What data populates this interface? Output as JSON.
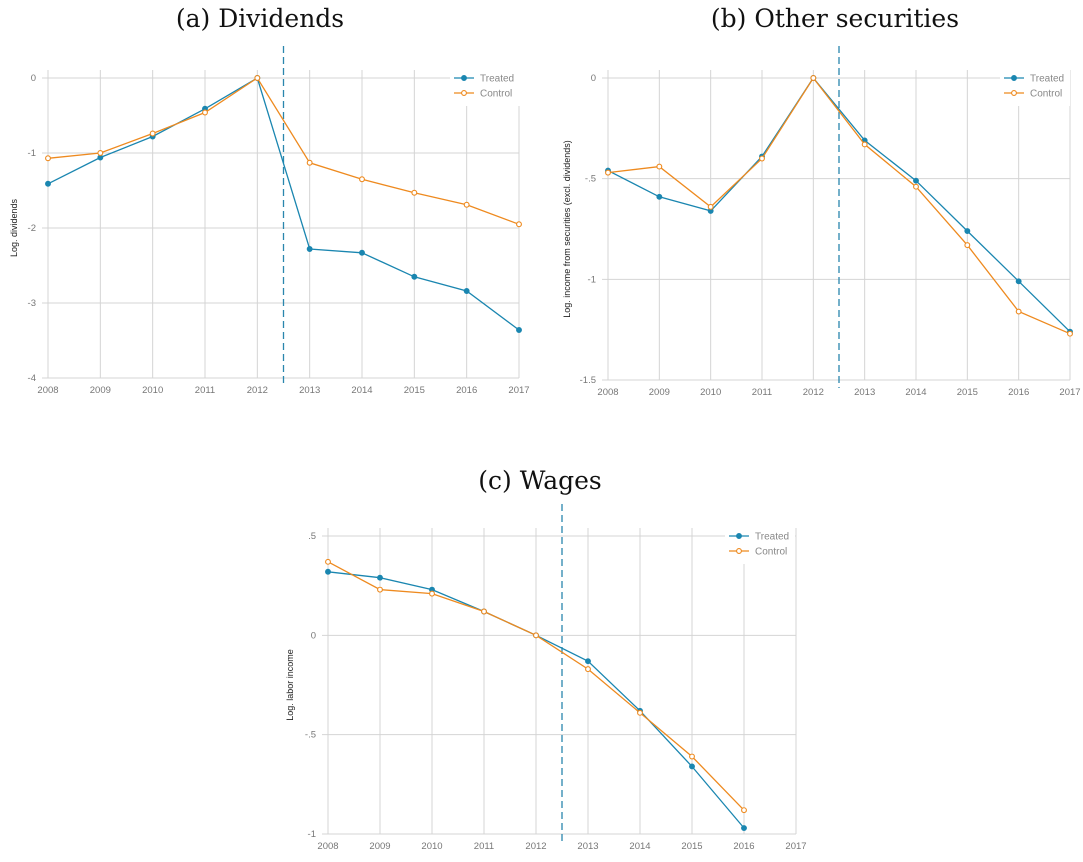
{
  "chart_data": [
    {
      "type": "line",
      "title": "(a) Dividends",
      "ylabel": "Log. dividends",
      "x": [
        2008,
        2009,
        2010,
        2011,
        2012,
        2013,
        2014,
        2015,
        2016,
        2017
      ],
      "ylim": [
        -4,
        0
      ],
      "yticks": [
        0,
        -1,
        -2,
        -3,
        -4
      ],
      "ytick_labels": [
        "0",
        "-1",
        "-2",
        "-3",
        "-4"
      ],
      "treatment_line_x": 2012.5,
      "legend_position": "top-right",
      "series": [
        {
          "name": "Treated",
          "color": "#1a86b0",
          "marker": "filled",
          "values": [
            -1.41,
            -1.06,
            -0.78,
            -0.41,
            0.0,
            -2.28,
            -2.33,
            -2.65,
            -2.84,
            -3.36
          ]
        },
        {
          "name": "Control",
          "color": "#ee8a1f",
          "marker": "hollow",
          "values": [
            -1.07,
            -1.0,
            -0.74,
            -0.46,
            0.0,
            -1.13,
            -1.35,
            -1.53,
            -1.69,
            -1.95
          ]
        }
      ]
    },
    {
      "type": "line",
      "title": "(b) Other securities",
      "ylabel": "Log. income from securities (excl. dividends)",
      "x": [
        2008,
        2009,
        2010,
        2011,
        2012,
        2013,
        2014,
        2015,
        2016,
        2017
      ],
      "ylim": [
        -1.5,
        0
      ],
      "yticks": [
        0,
        -0.5,
        -1,
        -1.5
      ],
      "ytick_labels": [
        "0",
        "-.5",
        "-1",
        "-1.5"
      ],
      "treatment_line_x": 2012.5,
      "legend_position": "top-right",
      "series": [
        {
          "name": "Treated",
          "color": "#1a86b0",
          "marker": "filled",
          "values": [
            -0.46,
            -0.59,
            -0.66,
            -0.39,
            0.0,
            -0.31,
            -0.51,
            -0.76,
            -1.01,
            -1.26
          ]
        },
        {
          "name": "Control",
          "color": "#ee8a1f",
          "marker": "hollow",
          "values": [
            -0.47,
            -0.44,
            -0.64,
            -0.4,
            0.0,
            -0.33,
            -0.54,
            -0.83,
            -1.16,
            -1.27
          ]
        }
      ]
    },
    {
      "type": "line",
      "title": "(c) Wages",
      "ylabel": "Log. labor income",
      "x": [
        2008,
        2009,
        2010,
        2011,
        2012,
        2013,
        2014,
        2015,
        2016,
        2017
      ],
      "ylim": [
        -1,
        0.5
      ],
      "yticks": [
        0.5,
        0,
        -0.5,
        -1
      ],
      "ytick_labels": [
        ".5",
        "0",
        "-.5",
        "-1"
      ],
      "treatment_line_x": 2012.5,
      "legend_position": "top-right",
      "series": [
        {
          "name": "Treated",
          "color": "#1a86b0",
          "marker": "filled",
          "values": [
            0.32,
            0.29,
            0.23,
            0.12,
            0.0,
            -0.13,
            -0.38,
            -0.66,
            -0.97,
            null
          ]
        },
        {
          "name": "Control",
          "color": "#ee8a1f",
          "marker": "hollow",
          "values": [
            0.37,
            0.23,
            0.21,
            0.12,
            0.0,
            -0.17,
            -0.39,
            -0.61,
            -0.88,
            null
          ]
        }
      ]
    }
  ]
}
